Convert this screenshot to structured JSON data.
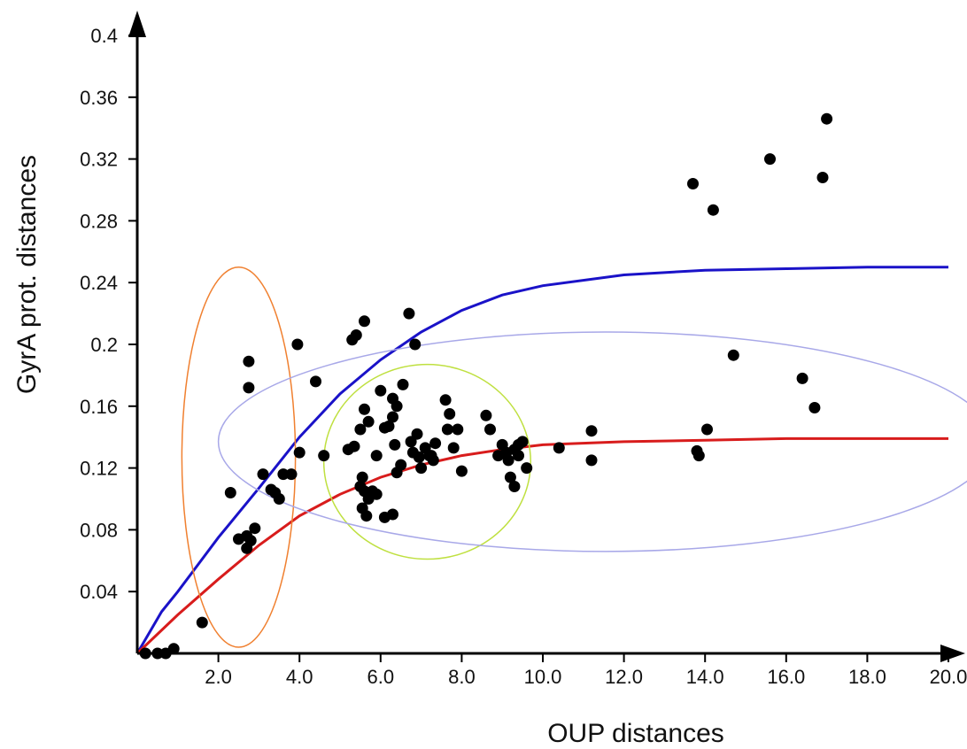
{
  "chart_data": {
    "type": "scatter",
    "xlabel": "OUP distances",
    "ylabel": "GyrA prot. distances",
    "xlim": [
      0,
      20
    ],
    "ylim": [
      0,
      0.4
    ],
    "x_ticks": [
      {
        "value": 2,
        "label": "2.0"
      },
      {
        "value": 4,
        "label": "4.0"
      },
      {
        "value": 6,
        "label": "6.0"
      },
      {
        "value": 8,
        "label": "8.0"
      },
      {
        "value": 10,
        "label": "10.0"
      },
      {
        "value": 12,
        "label": "12.0"
      },
      {
        "value": 14,
        "label": "14.0"
      },
      {
        "value": 16,
        "label": "16.0"
      },
      {
        "value": 18,
        "label": "18.0"
      },
      {
        "value": 20,
        "label": "20.0"
      }
    ],
    "y_ticks": [
      {
        "value": 0.04,
        "label": "0.04"
      },
      {
        "value": 0.08,
        "label": "0.08"
      },
      {
        "value": 0.12,
        "label": "0.12"
      },
      {
        "value": 0.16,
        "label": "0.16"
      },
      {
        "value": 0.2,
        "label": "0.2"
      },
      {
        "value": 0.24,
        "label": "0.24"
      },
      {
        "value": 0.28,
        "label": "0.28"
      },
      {
        "value": 0.32,
        "label": "0.32"
      },
      {
        "value": 0.36,
        "label": "0.36"
      },
      {
        "value": 0.4,
        "label": "0.4"
      }
    ],
    "grid": false,
    "legend": "none",
    "points": [
      [
        0.2,
        0.0
      ],
      [
        0.5,
        0.0
      ],
      [
        0.7,
        0.0
      ],
      [
        0.9,
        0.003
      ],
      [
        1.6,
        0.02
      ],
      [
        2.3,
        0.104
      ],
      [
        2.5,
        0.074
      ],
      [
        2.7,
        0.068
      ],
      [
        2.7,
        0.076
      ],
      [
        2.8,
        0.073
      ],
      [
        2.9,
        0.081
      ],
      [
        2.75,
        0.189
      ],
      [
        2.75,
        0.172
      ],
      [
        3.1,
        0.116
      ],
      [
        3.3,
        0.106
      ],
      [
        3.4,
        0.104
      ],
      [
        3.5,
        0.1
      ],
      [
        3.6,
        0.116
      ],
      [
        3.8,
        0.116
      ],
      [
        4.0,
        0.13
      ],
      [
        3.95,
        0.2
      ],
      [
        4.4,
        0.176
      ],
      [
        4.6,
        0.128
      ],
      [
        5.3,
        0.203
      ],
      [
        5.4,
        0.206
      ],
      [
        5.6,
        0.215
      ],
      [
        5.2,
        0.132
      ],
      [
        5.35,
        0.134
      ],
      [
        5.5,
        0.145
      ],
      [
        5.6,
        0.158
      ],
      [
        5.7,
        0.15
      ],
      [
        5.5,
        0.108
      ],
      [
        5.55,
        0.114
      ],
      [
        5.6,
        0.105
      ],
      [
        5.55,
        0.094
      ],
      [
        5.65,
        0.089
      ],
      [
        5.7,
        0.1
      ],
      [
        5.8,
        0.105
      ],
      [
        5.9,
        0.103
      ],
      [
        5.9,
        0.128
      ],
      [
        6.0,
        0.17
      ],
      [
        6.1,
        0.146
      ],
      [
        6.2,
        0.147
      ],
      [
        6.3,
        0.153
      ],
      [
        6.3,
        0.165
      ],
      [
        6.4,
        0.16
      ],
      [
        6.35,
        0.135
      ],
      [
        6.4,
        0.117
      ],
      [
        6.5,
        0.122
      ],
      [
        6.55,
        0.174
      ],
      [
        6.1,
        0.088
      ],
      [
        6.3,
        0.09
      ],
      [
        6.7,
        0.22
      ],
      [
        6.85,
        0.2
      ],
      [
        6.75,
        0.137
      ],
      [
        6.8,
        0.13
      ],
      [
        6.9,
        0.142
      ],
      [
        6.95,
        0.127
      ],
      [
        7.0,
        0.12
      ],
      [
        7.1,
        0.133
      ],
      [
        7.2,
        0.128
      ],
      [
        7.3,
        0.125
      ],
      [
        7.35,
        0.136
      ],
      [
        7.25,
        0.128
      ],
      [
        7.6,
        0.164
      ],
      [
        7.7,
        0.155
      ],
      [
        7.65,
        0.145
      ],
      [
        7.8,
        0.133
      ],
      [
        7.9,
        0.145
      ],
      [
        8.0,
        0.118
      ],
      [
        8.6,
        0.154
      ],
      [
        8.7,
        0.145
      ],
      [
        8.9,
        0.128
      ],
      [
        9.0,
        0.135
      ],
      [
        9.1,
        0.13
      ],
      [
        9.15,
        0.125
      ],
      [
        9.2,
        0.114
      ],
      [
        9.3,
        0.108
      ],
      [
        9.3,
        0.132
      ],
      [
        9.4,
        0.128
      ],
      [
        9.5,
        0.137
      ],
      [
        9.6,
        0.12
      ],
      [
        9.4,
        0.135
      ],
      [
        10.4,
        0.133
      ],
      [
        11.2,
        0.144
      ],
      [
        11.2,
        0.125
      ],
      [
        13.7,
        0.304
      ],
      [
        14.2,
        0.287
      ],
      [
        13.8,
        0.131
      ],
      [
        13.85,
        0.128
      ],
      [
        14.05,
        0.145
      ],
      [
        14.7,
        0.193
      ],
      [
        15.6,
        0.32
      ],
      [
        16.4,
        0.178
      ],
      [
        16.7,
        0.159
      ],
      [
        16.9,
        0.308
      ],
      [
        17.0,
        0.346
      ]
    ],
    "curves": [
      {
        "color": "#1a12c8",
        "points": [
          [
            0,
            0
          ],
          [
            0.6,
            0.027
          ],
          [
            1,
            0.04
          ],
          [
            2,
            0.075
          ],
          [
            3,
            0.107
          ],
          [
            4,
            0.14
          ],
          [
            5,
            0.168
          ],
          [
            6,
            0.19
          ],
          [
            7,
            0.208
          ],
          [
            8,
            0.222
          ],
          [
            9,
            0.232
          ],
          [
            10,
            0.238
          ],
          [
            12,
            0.245
          ],
          [
            14,
            0.248
          ],
          [
            16,
            0.249
          ],
          [
            18,
            0.25
          ],
          [
            20,
            0.25
          ]
        ]
      },
      {
        "color": "#d81c1c",
        "points": [
          [
            0,
            0
          ],
          [
            1,
            0.025
          ],
          [
            2,
            0.048
          ],
          [
            3,
            0.07
          ],
          [
            4,
            0.089
          ],
          [
            5,
            0.103
          ],
          [
            6,
            0.114
          ],
          [
            7,
            0.122
          ],
          [
            8,
            0.128
          ],
          [
            9,
            0.132
          ],
          [
            10,
            0.135
          ],
          [
            12,
            0.137
          ],
          [
            14,
            0.138
          ],
          [
            16,
            0.139
          ],
          [
            20,
            0.139
          ]
        ]
      }
    ],
    "ellipses": [
      {
        "color": "#f08030",
        "cx": 2.5,
        "cy": 0.127,
        "rx": 1.4,
        "ry": 0.123
      },
      {
        "color": "#bfe040",
        "cx": 7.15,
        "cy": 0.124,
        "rx": 2.55,
        "ry": 0.063
      },
      {
        "color": "#a8a8e8",
        "cx": 11.55,
        "cy": 0.137,
        "rx": 9.55,
        "ry": 0.071
      }
    ]
  }
}
